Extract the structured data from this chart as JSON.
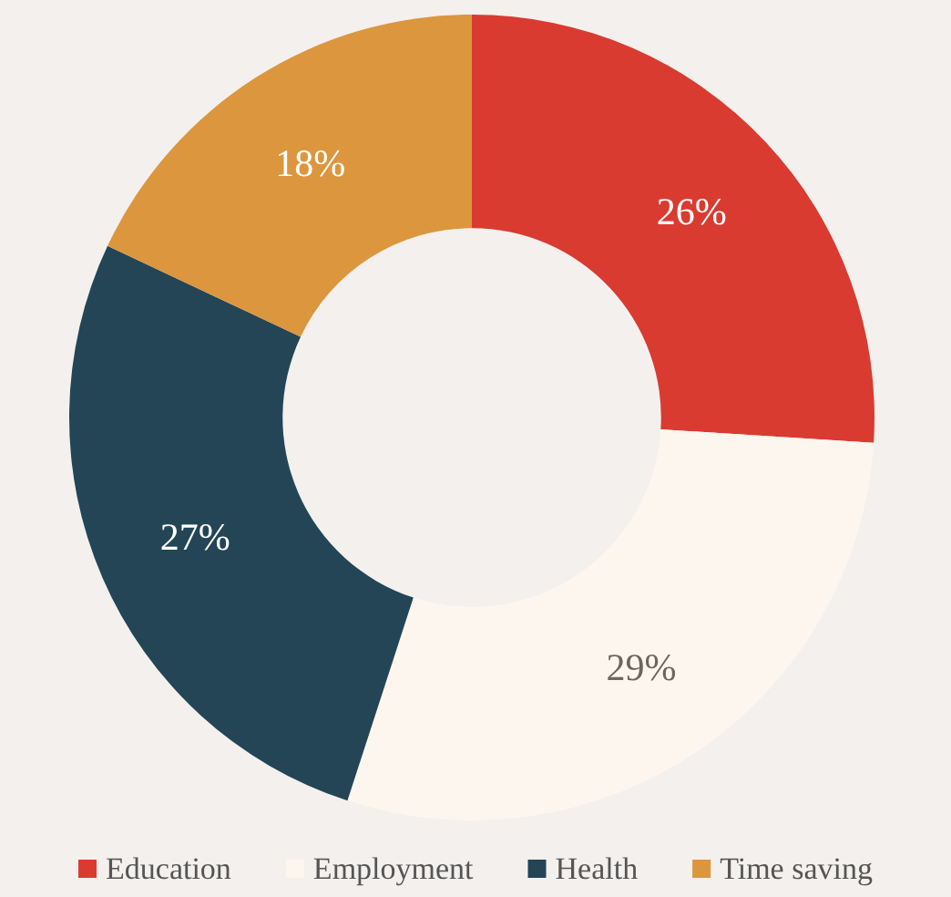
{
  "chart_data": {
    "type": "donut",
    "categories": [
      "Education",
      "Employment",
      "Health",
      "Time saving"
    ],
    "values": [
      26,
      29,
      27,
      18
    ],
    "colors": [
      "#d93b30",
      "#fdf6ef",
      "#234556",
      "#dc963e"
    ],
    "legend": "bottom",
    "value_labels": [
      "26%",
      "29%",
      "27%",
      "18%"
    ]
  }
}
